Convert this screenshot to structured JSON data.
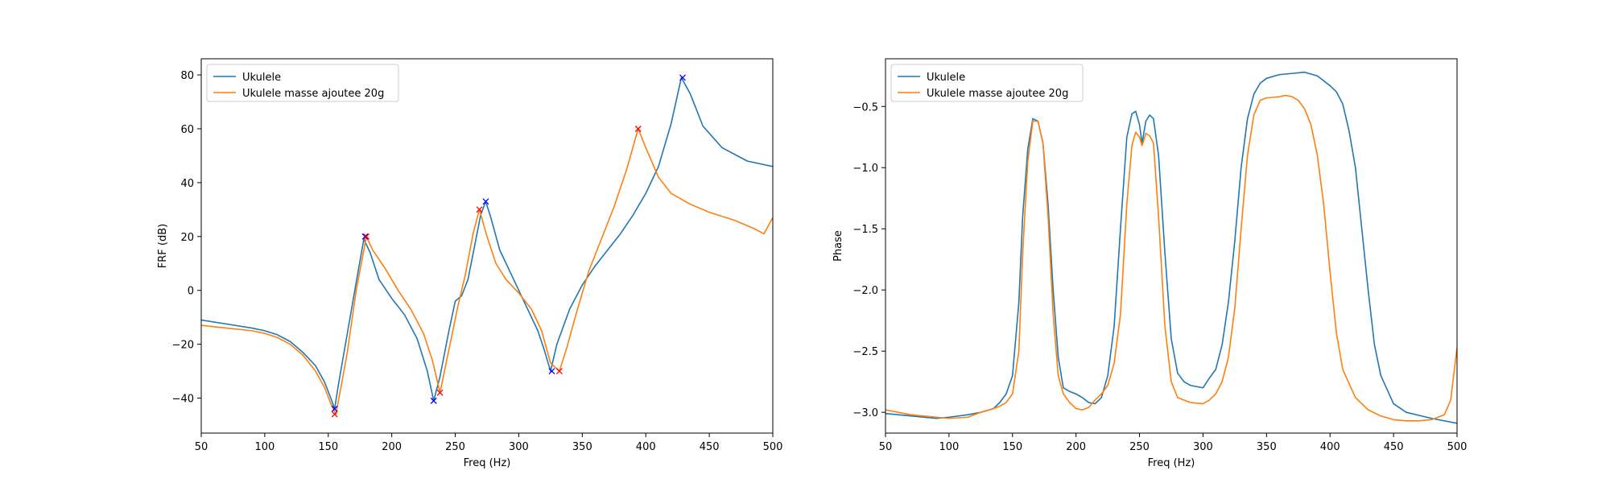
{
  "chart_data": [
    {
      "type": "line",
      "xlabel": "Freq (Hz)",
      "ylabel": "FRF (dB)",
      "xlim": [
        50,
        500
      ],
      "ylim": [
        -53,
        86
      ],
      "xticks": [
        50,
        100,
        150,
        200,
        250,
        300,
        350,
        400,
        450,
        500
      ],
      "yticks": [
        -40,
        -20,
        0,
        20,
        40,
        60,
        80
      ],
      "grid": false,
      "legend_position": "top-left",
      "series": [
        {
          "name": "Ukulele",
          "color": "#1f77b4",
          "x": [
            50,
            70,
            90,
            100,
            110,
            120,
            130,
            140,
            147,
            152,
            155,
            158,
            165,
            172,
            178,
            183,
            190,
            200,
            210,
            220,
            228,
            233,
            238,
            245,
            250,
            255,
            260,
            265,
            270,
            274,
            278,
            285,
            295,
            305,
            315,
            320,
            325,
            330,
            340,
            350,
            360,
            370,
            380,
            390,
            400,
            410,
            420,
            428,
            435,
            445,
            460,
            480,
            500
          ],
          "y": [
            -11,
            -12.5,
            -14,
            -15,
            -16.5,
            -19,
            -23,
            -28,
            -34,
            -40,
            -44,
            -35,
            -16,
            3,
            19,
            14,
            4,
            -3,
            -9,
            -18,
            -30,
            -41,
            -32,
            -15,
            -4,
            -2,
            4,
            16,
            28,
            33,
            27,
            15,
            5,
            -5,
            -15,
            -22,
            -30,
            -20,
            -7,
            2,
            9,
            15,
            21,
            28,
            36,
            46,
            62,
            79,
            73,
            61,
            53,
            48,
            46
          ]
        },
        {
          "name": "Ukulele masse ajoutee 20g",
          "color": "#ff7f0e",
          "x": [
            50,
            70,
            90,
            100,
            110,
            120,
            130,
            140,
            147,
            152,
            156,
            160,
            165,
            172,
            180,
            185,
            195,
            205,
            215,
            225,
            232,
            238,
            245,
            252,
            258,
            264,
            269,
            275,
            282,
            290,
            300,
            310,
            318,
            325,
            332,
            338,
            345,
            355,
            365,
            375,
            385,
            394,
            400,
            410,
            420,
            435,
            450,
            470,
            485,
            493,
            500
          ],
          "y": [
            -13,
            -14,
            -15,
            -16,
            -17.5,
            -20,
            -24,
            -30,
            -36,
            -42,
            -46,
            -36,
            -23,
            0,
            20,
            15,
            8,
            0,
            -7,
            -16,
            -26,
            -38,
            -22,
            -6,
            6,
            21,
            30,
            20,
            10,
            4,
            -1,
            -7,
            -15,
            -27,
            -30,
            -21,
            -9,
            7,
            19,
            31,
            45,
            60,
            53,
            42,
            36,
            32,
            29,
            26,
            23,
            21,
            27
          ]
        }
      ],
      "markers": [
        {
          "color": "#0000ff",
          "points": [
            [
              155,
              -44
            ],
            [
              179,
              20
            ],
            [
              233,
              -41
            ],
            [
              274,
              33
            ],
            [
              326,
              -30
            ],
            [
              429,
              79
            ]
          ]
        },
        {
          "color": "#ff0000",
          "points": [
            [
              155,
              -46
            ],
            [
              180,
              20
            ],
            [
              238,
              -38
            ],
            [
              269,
              30
            ],
            [
              332,
              -30
            ],
            [
              394,
              60
            ]
          ]
        }
      ]
    },
    {
      "type": "line",
      "xlabel": "Freq (Hz)",
      "ylabel": "Phase",
      "xlim": [
        50,
        500
      ],
      "ylim": [
        -3.17,
        -0.11
      ],
      "xticks": [
        50,
        100,
        150,
        200,
        250,
        300,
        350,
        400,
        450,
        500
      ],
      "yticks": [
        -3.0,
        -2.5,
        -2.0,
        -1.5,
        -1.0,
        -0.5
      ],
      "ytick_labels": [
        "−3.0",
        "−2.5",
        "−2.0",
        "−1.5",
        "−1.0",
        "−0.5"
      ],
      "grid": false,
      "legend_position": "top-left",
      "series": [
        {
          "name": "Ukulele",
          "color": "#1f77b4",
          "x": [
            50,
            70,
            90,
            100,
            115,
            125,
            135,
            140,
            145,
            150,
            155,
            158,
            162,
            166,
            170,
            174,
            178,
            182,
            186,
            190,
            195,
            200,
            205,
            210,
            215,
            220,
            225,
            230,
            235,
            240,
            244,
            247,
            250,
            252,
            255,
            258,
            261,
            265,
            270,
            275,
            280,
            285,
            290,
            295,
            300,
            305,
            310,
            315,
            320,
            325,
            330,
            335,
            340,
            345,
            350,
            360,
            370,
            380,
            390,
            400,
            405,
            410,
            415,
            420,
            425,
            430,
            435,
            440,
            450,
            460,
            480,
            500
          ],
          "y": [
            -3.01,
            -3.03,
            -3.05,
            -3.04,
            -3.02,
            -3.0,
            -2.97,
            -2.92,
            -2.85,
            -2.7,
            -2.1,
            -1.4,
            -0.85,
            -0.6,
            -0.62,
            -0.8,
            -1.3,
            -2.0,
            -2.55,
            -2.8,
            -2.83,
            -2.85,
            -2.88,
            -2.92,
            -2.93,
            -2.88,
            -2.7,
            -2.3,
            -1.5,
            -0.75,
            -0.56,
            -0.54,
            -0.65,
            -0.8,
            -0.62,
            -0.57,
            -0.6,
            -0.9,
            -1.7,
            -2.4,
            -2.68,
            -2.75,
            -2.78,
            -2.79,
            -2.8,
            -2.72,
            -2.65,
            -2.45,
            -2.1,
            -1.6,
            -1.0,
            -0.6,
            -0.4,
            -0.31,
            -0.27,
            -0.24,
            -0.23,
            -0.22,
            -0.25,
            -0.33,
            -0.38,
            -0.48,
            -0.7,
            -1.0,
            -1.5,
            -2.0,
            -2.45,
            -2.7,
            -2.93,
            -3.0,
            -3.05,
            -3.09
          ]
        },
        {
          "name": "Ukulele masse ajoutee 20g",
          "color": "#ff7f0e",
          "x": [
            50,
            70,
            90,
            100,
            115,
            125,
            135,
            140,
            145,
            150,
            155,
            158,
            162,
            166,
            170,
            174,
            178,
            182,
            186,
            190,
            195,
            200,
            205,
            210,
            215,
            220,
            225,
            230,
            235,
            240,
            244,
            247,
            250,
            252,
            255,
            258,
            261,
            265,
            270,
            275,
            280,
            290,
            300,
            305,
            310,
            315,
            320,
            325,
            330,
            335,
            340,
            345,
            350,
            360,
            365,
            370,
            375,
            380,
            385,
            390,
            395,
            400,
            405,
            410,
            420,
            430,
            440,
            450,
            460,
            470,
            480,
            490,
            495,
            500
          ],
          "y": [
            -2.98,
            -3.02,
            -3.04,
            -3.05,
            -3.04,
            -3.0,
            -2.97,
            -2.95,
            -2.92,
            -2.85,
            -2.5,
            -1.7,
            -0.95,
            -0.62,
            -0.62,
            -0.8,
            -1.4,
            -2.2,
            -2.7,
            -2.85,
            -2.92,
            -2.97,
            -2.98,
            -2.96,
            -2.9,
            -2.85,
            -2.78,
            -2.6,
            -2.2,
            -1.3,
            -0.82,
            -0.71,
            -0.75,
            -0.82,
            -0.72,
            -0.74,
            -0.8,
            -1.4,
            -2.3,
            -2.75,
            -2.88,
            -2.92,
            -2.93,
            -2.9,
            -2.85,
            -2.75,
            -2.55,
            -2.15,
            -1.5,
            -0.9,
            -0.57,
            -0.45,
            -0.43,
            -0.42,
            -0.41,
            -0.42,
            -0.45,
            -0.52,
            -0.65,
            -0.9,
            -1.3,
            -1.85,
            -2.35,
            -2.65,
            -2.88,
            -2.98,
            -3.03,
            -3.06,
            -3.07,
            -3.07,
            -3.06,
            -3.02,
            -2.9,
            -2.47
          ]
        }
      ]
    }
  ]
}
